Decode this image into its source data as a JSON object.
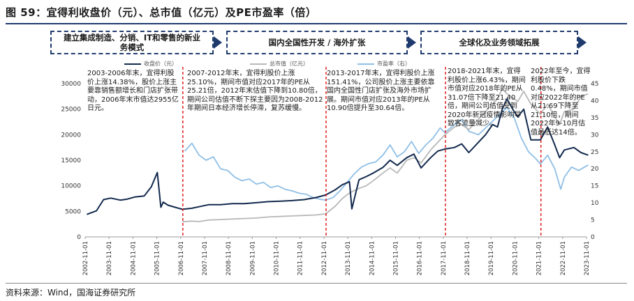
{
  "figure": {
    "title": "图 59：宜得利收盘价（元）、总市值（亿元）及PE市盈率（倍）",
    "source": "资料来源：Wind，国海证券研究所"
  },
  "phases": [
    {
      "label": "建立集成制造、分销、IT和零售的新业务模式"
    },
    {
      "label": "国内全国性开发 / 海外扩张"
    },
    {
      "label": "全球化及业务领域拓展"
    }
  ],
  "annotations": [
    {
      "text": "2003-2006年末，宜得利股价上涨14.38%，股价上涨主要靠销售额增长和门店扩张带动，2006年末市值达2955亿日元。"
    },
    {
      "text": "2007-2012年末，宜得利股价上涨25.10%，期间市值对应2017年的PE从25.21倍，2012年末估值下降到10.80倍，期间公司估值不断下探主要因为2008-2012年期间日本经济增长停滞，复苏缓慢。"
    },
    {
      "text": "2013-2017年末，宜得利股价上涨151.41%，公司股价上涨主要依靠国内全国性门店扩张及海外市场扩展。期间市值对应2013年的PE从10.90倍提升至30.64倍。"
    },
    {
      "text": "2018-2021年末，宜得利股价上涨6.43%，期间市值对应2018年的PE从31.07倍下降至21.40倍，期间公司估值受到2020年新冠疫情影响导致客流量减少。"
    },
    {
      "text": "2022年至今，宜得利股价下跌0.48%，期间市值对应2022年的PE从21.69下降至21.10倍，期间2022年9-10月估值最低达14倍。"
    }
  ],
  "chart_data": {
    "type": "line",
    "title": "宜得利收盘价（元）、总市值（亿元）及PE市盈率（倍）",
    "x_tick_labels": [
      "2002-11-01",
      "2003-11-01",
      "2004-11-01",
      "2005-11-01",
      "2006-11-01",
      "2007-11-01",
      "2008-11-01",
      "2009-11-01",
      "2010-11-01",
      "2011-11-01",
      "2012-11-01",
      "2013-11-01",
      "2014-11-01",
      "2015-11-01",
      "2016-11-01",
      "2017-11-01",
      "2018-11-01",
      "2019-11-01",
      "2020-11-01",
      "2021-11-01",
      "2022-11-01",
      "2023-11-01"
    ],
    "y_left": {
      "min": 0,
      "max": 30000,
      "ticks": [
        "0",
        "5000",
        "10000",
        "15000",
        "20000",
        "25000",
        "30000"
      ]
    },
    "y_right": {
      "min": 0,
      "max": 45,
      "ticks": [
        "0",
        "5",
        "10",
        "15",
        "20",
        "25",
        "30",
        "35",
        "40",
        "45"
      ]
    },
    "phase_dividers_x": [
      2006.92,
      2012.92,
      2017.92,
      2021.92
    ],
    "series": [
      {
        "name": "收盘价（元）",
        "axis": "left",
        "color": "#12294d",
        "x": [
          2002.9,
          2003.3,
          2003.6,
          2003.9,
          2004.3,
          2004.6,
          2004.9,
          2005.3,
          2005.6,
          2005.85,
          2006.0,
          2006.1,
          2006.3,
          2006.6,
          2006.9,
          2007.3,
          2007.6,
          2008.0,
          2008.5,
          2009.0,
          2009.5,
          2010.0,
          2010.5,
          2011.0,
          2011.5,
          2012.0,
          2012.5,
          2012.9,
          2013.3,
          2013.6,
          2013.9,
          2014.0,
          2014.3,
          2014.6,
          2014.9,
          2015.3,
          2015.6,
          2015.9,
          2016.3,
          2016.6,
          2016.9,
          2017.3,
          2017.6,
          2017.9,
          2018.3,
          2018.6,
          2018.9,
          2019.3,
          2019.6,
          2019.9,
          2020.1,
          2020.3,
          2020.5,
          2020.8,
          2020.95,
          2021.2,
          2021.5,
          2021.9,
          2022.2,
          2022.5,
          2022.7,
          2022.9,
          2023.3,
          2023.6,
          2023.9
        ],
        "y": [
          4400,
          5100,
          7300,
          7600,
          7200,
          7400,
          7800,
          8000,
          9800,
          12600,
          5800,
          6800,
          6200,
          5800,
          5400,
          5600,
          5900,
          6300,
          6300,
          6500,
          6500,
          6700,
          6900,
          7000,
          7100,
          7300,
          7700,
          8200,
          9200,
          10200,
          10800,
          5500,
          11200,
          11800,
          12500,
          13600,
          15000,
          14000,
          15500,
          16200,
          13500,
          15500,
          16800,
          17200,
          17500,
          18200,
          16500,
          18500,
          20000,
          22000,
          21500,
          25000,
          27000,
          24500,
          23500,
          25000,
          19000,
          19000,
          21500,
          18000,
          15500,
          17000,
          17500,
          16500,
          16000
        ]
      },
      {
        "name": "总市值（亿元）",
        "axis": "left",
        "color": "#b8b8b8",
        "x": [
          2006.9,
          2007.3,
          2007.6,
          2008.0,
          2008.5,
          2009.0,
          2009.5,
          2010.0,
          2010.5,
          2011.0,
          2011.5,
          2012.0,
          2012.5,
          2012.9,
          2013.3,
          2013.6,
          2013.9,
          2014.3,
          2014.6,
          2014.9,
          2015.3,
          2015.6,
          2015.9,
          2016.3,
          2016.6,
          2016.9,
          2017.3,
          2017.6,
          2017.9,
          2018.3,
          2018.6,
          2018.9,
          2019.3,
          2019.6,
          2019.9,
          2020.1,
          2020.3,
          2020.5,
          2020.8,
          2020.95,
          2021.2,
          2021.5,
          2021.9,
          2022.2,
          2022.5,
          2022.7,
          2022.9,
          2023.3,
          2023.6,
          2023.9
        ],
        "y": [
          2955,
          3100,
          3000,
          3300,
          3400,
          3500,
          3600,
          3700,
          3900,
          4000,
          4100,
          4200,
          4300,
          4500,
          6000,
          7500,
          8600,
          9500,
          10000,
          11000,
          12500,
          13500,
          12500,
          15000,
          15500,
          14500,
          17000,
          18500,
          20000,
          21500,
          22000,
          21000,
          23000,
          24500,
          26000,
          27000,
          29000,
          28000,
          27000,
          26500,
          28500,
          26000,
          24000,
          26000,
          23500,
          22000,
          24500,
          25000,
          27500,
          28000
        ]
      },
      {
        "name": "市盈率（右）",
        "axis": "right",
        "color": "#8fbfe6",
        "x": [
          2007.0,
          2007.3,
          2007.6,
          2007.9,
          2008.2,
          2008.5,
          2008.8,
          2009.1,
          2009.4,
          2009.7,
          2010.0,
          2010.3,
          2010.6,
          2010.9,
          2011.2,
          2011.5,
          2011.8,
          2012.1,
          2012.4,
          2012.7,
          2012.9,
          2013.2,
          2013.5,
          2013.8,
          2014.1,
          2014.4,
          2014.7,
          2015.0,
          2015.3,
          2015.6,
          2015.9,
          2016.2,
          2016.5,
          2016.8,
          2017.1,
          2017.4,
          2017.7,
          2017.9,
          2018.3,
          2018.6,
          2018.9,
          2019.3,
          2019.6,
          2019.9,
          2020.2,
          2020.5,
          2020.8,
          2021.1,
          2021.4,
          2021.7,
          2021.9,
          2022.2,
          2022.5,
          2022.75,
          2022.9,
          2023.2,
          2023.5,
          2023.9
        ],
        "y": [
          25.2,
          27.5,
          24.0,
          22.5,
          23.5,
          20.0,
          19.5,
          17.5,
          16.5,
          17.0,
          15.5,
          16.0,
          14.5,
          15.0,
          14.0,
          13.5,
          12.8,
          12.5,
          11.5,
          11.0,
          10.8,
          11.5,
          13.5,
          16.0,
          18.5,
          20.5,
          21.5,
          22.0,
          24.0,
          27.0,
          23.5,
          25.0,
          28.0,
          24.5,
          27.0,
          29.0,
          32.0,
          30.6,
          33.0,
          34.5,
          31.0,
          30.0,
          32.0,
          34.0,
          36.0,
          38.0,
          35.0,
          29.0,
          25.0,
          23.0,
          21.4,
          24.0,
          20.0,
          14.0,
          17.5,
          20.5,
          19.5,
          21.1
        ]
      }
    ]
  }
}
